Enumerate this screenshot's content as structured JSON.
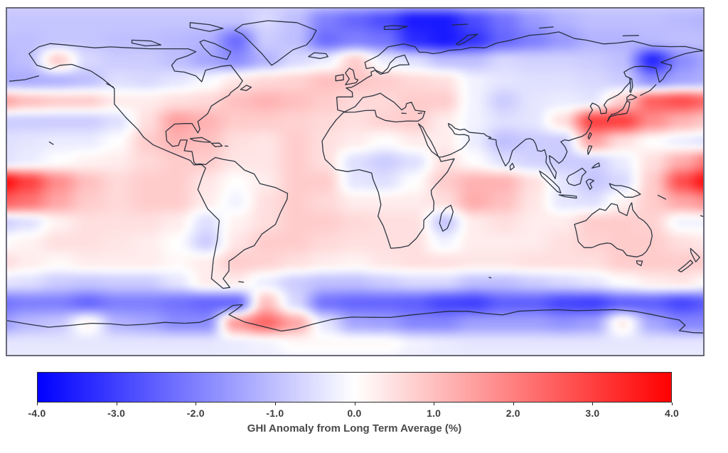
{
  "figure": {
    "background": "#ffffff",
    "map_border_color": "#69697a"
  },
  "chart_data": {
    "type": "heatmap",
    "projection": "equirectangular",
    "lon_range": [
      -180,
      180
    ],
    "lat_range": [
      -90,
      90
    ],
    "units": "%",
    "colorbar": {
      "label": "GHI Anomaly from Long Term Average (%)",
      "tick_labels": [
        "-4.0",
        "-3.0",
        "-2.0",
        "-1.0",
        "0.0",
        "1.0",
        "2.0",
        "3.0",
        "4.0"
      ],
      "min": -4.0,
      "max": 4.0,
      "colormap": "blue-white-red",
      "color_negative": "#0000ff",
      "color_zero": "#ffffff",
      "color_positive": "#ff0000"
    },
    "grid": {
      "lons": [
        -180,
        -165,
        -150,
        -135,
        -120,
        -105,
        -90,
        -75,
        -60,
        -45,
        -30,
        -15,
        0,
        15,
        30,
        45,
        60,
        75,
        90,
        105,
        120,
        135,
        150,
        165,
        180
      ],
      "lats": [
        90,
        80,
        70,
        60,
        50,
        40,
        30,
        20,
        10,
        0,
        -10,
        -20,
        -30,
        -40,
        -50,
        -60,
        -70,
        -80,
        -90
      ],
      "values_pct": [
        [
          -0.7,
          -0.7,
          -0.7,
          -0.7,
          -0.7,
          -0.7,
          -0.7,
          -0.7,
          -0.7,
          -0.7,
          -0.7,
          -0.7,
          -0.7,
          -0.7,
          -0.7,
          -0.7,
          -0.7,
          -0.7,
          -0.7,
          -0.7,
          -0.7,
          -0.7,
          -0.7,
          -0.7,
          -0.7
        ],
        [
          -0.9,
          -0.9,
          -0.9,
          -0.9,
          -0.9,
          -0.9,
          -0.9,
          -0.9,
          -0.9,
          -0.6,
          -1.0,
          -2.0,
          -2.4,
          -2.8,
          -3.6,
          -3.6,
          -2.8,
          -2.2,
          -1.6,
          -1.2,
          -1.0,
          -1.0,
          -1.0,
          -1.1,
          -1.2
        ],
        [
          -1.0,
          -1.0,
          -0.9,
          -0.9,
          -1.0,
          -1.0,
          -1.1,
          -1.2,
          -2.3,
          -0.8,
          -1.0,
          -2.3,
          -2.0,
          -2.2,
          -3.3,
          -3.6,
          -3.2,
          -2.4,
          -2.0,
          -1.6,
          -1.2,
          -1.2,
          -1.1,
          -1.0,
          -1.0
        ],
        [
          -1.2,
          -1.0,
          0.8,
          -0.6,
          -0.8,
          -0.8,
          -1.0,
          -1.4,
          -1.8,
          -1.2,
          -0.6,
          -0.3,
          0.8,
          -0.3,
          -0.5,
          -1.0,
          -1.0,
          -0.6,
          -0.7,
          -0.7,
          -0.8,
          -1.0,
          -3.4,
          -1.8,
          -1.3
        ],
        [
          -1.3,
          -1.3,
          -1.2,
          -1.0,
          -0.5,
          -0.6,
          -0.4,
          -0.1,
          0.4,
          0.6,
          0.7,
          1.0,
          0.9,
          0.8,
          0.6,
          0.5,
          -0.2,
          -0.4,
          -0.5,
          -0.5,
          -0.6,
          -0.8,
          -1.8,
          -1.4,
          -1.2
        ],
        [
          1.5,
          1.0,
          0.8,
          0.8,
          0.3,
          0.3,
          0.5,
          0.6,
          1.0,
          1.2,
          1.0,
          0.8,
          0.6,
          0.6,
          0.8,
          0.8,
          -0.2,
          -0.8,
          -0.4,
          -0.3,
          -0.4,
          0.8,
          2.5,
          2.8,
          2.3
        ],
        [
          -0.8,
          -0.8,
          -0.8,
          -0.8,
          -0.5,
          0.5,
          1.5,
          1.2,
          0.8,
          0.8,
          0.7,
          0.6,
          0.5,
          0.7,
          0.8,
          0.3,
          -0.2,
          -0.5,
          -0.4,
          0.5,
          3.0,
          3.0,
          1.8,
          1.2,
          0.8
        ],
        [
          -0.5,
          -0.4,
          -0.3,
          -0.3,
          0.0,
          0.8,
          1.2,
          1.0,
          0.5,
          0.4,
          0.8,
          0.5,
          0.3,
          0.0,
          0.3,
          0.3,
          -0.3,
          -1.0,
          -0.8,
          -0.8,
          1.5,
          0.5,
          0.0,
          -0.3,
          -0.5
        ],
        [
          -0.5,
          -0.3,
          0.0,
          0.2,
          0.3,
          0.6,
          0.8,
          0.8,
          0.4,
          0.4,
          0.8,
          0.5,
          -0.5,
          -0.8,
          -0.5,
          0.5,
          0.0,
          -0.5,
          -0.7,
          -0.8,
          -0.8,
          -0.3,
          0.5,
          1.3,
          2.2
        ],
        [
          4.0,
          3.0,
          1.8,
          1.0,
          0.6,
          0.8,
          0.8,
          0.4,
          0.0,
          0.3,
          0.8,
          0.8,
          -0.4,
          -0.5,
          0.0,
          0.8,
          1.2,
          1.2,
          0.5,
          -0.4,
          -0.9,
          -0.6,
          0.8,
          2.8,
          4.0
        ],
        [
          2.6,
          2.2,
          1.4,
          0.8,
          0.6,
          0.8,
          0.8,
          0.3,
          -0.2,
          0.5,
          0.8,
          0.6,
          0.3,
          0.3,
          0.3,
          0.5,
          1.3,
          1.0,
          0.4,
          -0.4,
          -0.5,
          0.2,
          0.8,
          1.4,
          1.8
        ],
        [
          -0.8,
          -0.5,
          0.2,
          0.5,
          0.5,
          0.5,
          0.3,
          -0.5,
          0.2,
          0.5,
          0.8,
          0.8,
          0.6,
          0.5,
          0.5,
          -0.9,
          0.3,
          0.5,
          0.3,
          0.3,
          0.8,
          0.8,
          0.7,
          -0.2,
          -0.2
        ],
        [
          0.0,
          0.2,
          0.5,
          0.5,
          0.4,
          0.3,
          0.0,
          -0.8,
          0.4,
          0.8,
          0.8,
          0.6,
          0.5,
          0.5,
          0.5,
          -0.2,
          0.3,
          0.3,
          0.3,
          0.5,
          0.7,
          0.8,
          0.8,
          0.5,
          0.3
        ],
        [
          0.6,
          0.3,
          0.1,
          0.3,
          0.3,
          0.3,
          0.1,
          0.3,
          0.8,
          0.7,
          0.5,
          0.3,
          0.2,
          0.4,
          0.5,
          0.5,
          0.4,
          0.4,
          0.5,
          0.5,
          0.5,
          0.8,
          0.8,
          0.8,
          0.8
        ],
        [
          -0.4,
          -0.5,
          -0.8,
          -0.9,
          -0.8,
          -0.8,
          -0.4,
          0.3,
          0.3,
          -0.3,
          -0.8,
          -1.0,
          -1.0,
          -0.8,
          -0.6,
          -0.6,
          -1.0,
          -1.0,
          -0.8,
          -0.6,
          -0.4,
          0.0,
          0.3,
          0.4,
          0.0
        ],
        [
          -2.2,
          -2.0,
          -2.0,
          -2.4,
          -2.0,
          -2.0,
          -2.2,
          -2.4,
          -2.4,
          1.0,
          -0.6,
          -2.2,
          -2.4,
          -2.4,
          -2.5,
          -2.9,
          -3.0,
          -2.5,
          -2.5,
          -2.9,
          -3.0,
          -2.5,
          -2.5,
          -2.9,
          -2.5
        ],
        [
          -1.6,
          -1.1,
          -0.9,
          0.2,
          -1.2,
          -1.4,
          -1.8,
          -1.8,
          1.6,
          2.4,
          1.4,
          -0.4,
          -1.4,
          -1.5,
          -1.9,
          -1.9,
          -1.5,
          -1.5,
          -1.5,
          -1.7,
          -1.5,
          0.3,
          -1.4,
          -1.9,
          -1.9
        ],
        [
          -0.4,
          -0.4,
          -0.4,
          -0.4,
          -0.4,
          -0.4,
          -0.4,
          -0.4,
          -0.3,
          -0.2,
          0.1,
          0.1,
          0.1,
          0.1,
          -0.2,
          -0.3,
          -0.4,
          -0.4,
          -0.4,
          -0.4,
          -0.4,
          -0.4,
          -0.4,
          -0.4,
          -0.4
        ],
        [
          -0.3,
          -0.3,
          -0.3,
          -0.3,
          -0.3,
          -0.3,
          -0.3,
          -0.3,
          -0.3,
          -0.3,
          -0.3,
          -0.3,
          -0.3,
          -0.3,
          -0.3,
          -0.3,
          -0.3,
          -0.3,
          -0.3,
          -0.3,
          -0.3,
          -0.3,
          -0.3,
          -0.3,
          -0.3
        ]
      ]
    }
  }
}
